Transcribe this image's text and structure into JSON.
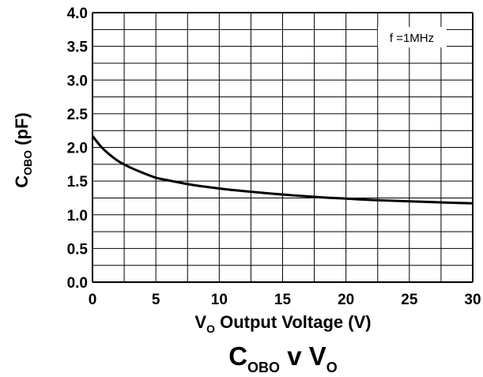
{
  "chart_data": {
    "type": "line",
    "x_title": {
      "main": "V",
      "sub": "O",
      "rest": " Output Voltage (V)"
    },
    "y_title": {
      "main": "C",
      "sub": "OBO",
      "rest": " (pF)"
    },
    "title": {
      "part1": "C",
      "sub1": "OBO",
      "part2": " v V",
      "sub2": "O"
    },
    "annotation": "f =1MHz",
    "xlim": [
      0,
      30
    ],
    "ylim": [
      0.0,
      4.0
    ],
    "x_ticks": [
      "0",
      "5",
      "10",
      "15",
      "20",
      "25",
      "30"
    ],
    "y_ticks": [
      "0.0",
      "0.5",
      "1.0",
      "1.5",
      "2.0",
      "2.5",
      "3.0",
      "3.5",
      "4.0"
    ],
    "grid": true,
    "series": [
      {
        "x": [
          0,
          0.5,
          1,
          2,
          3,
          4,
          5,
          6,
          8,
          10,
          12,
          15,
          18,
          20,
          22,
          25,
          28,
          30
        ],
        "y": [
          2.17,
          2.05,
          1.95,
          1.8,
          1.7,
          1.62,
          1.55,
          1.51,
          1.44,
          1.39,
          1.35,
          1.3,
          1.26,
          1.24,
          1.22,
          1.2,
          1.18,
          1.17
        ]
      }
    ]
  }
}
